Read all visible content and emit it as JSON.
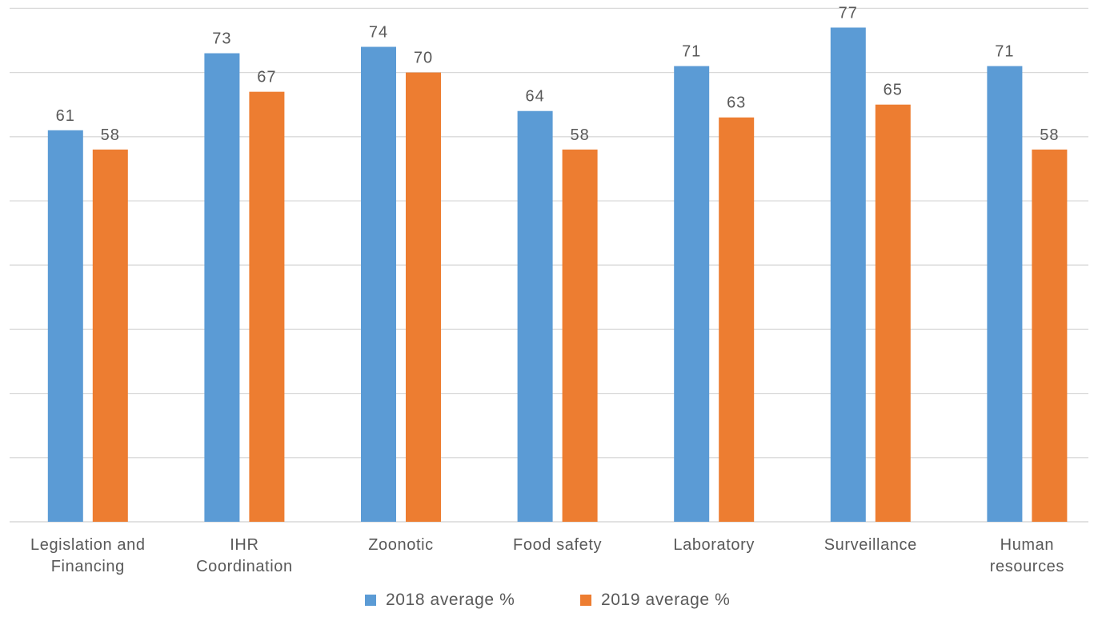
{
  "chart_data": {
    "type": "bar",
    "categories": [
      [
        "Legislation and",
        "Financing"
      ],
      [
        "IHR",
        "Coordination"
      ],
      [
        "Zoonotic"
      ],
      [
        "Food safety"
      ],
      [
        "Laboratory"
      ],
      [
        "Surveillance"
      ],
      [
        "Human",
        "resources"
      ]
    ],
    "series": [
      {
        "name": "2018 average %",
        "color": "#5b9bd5",
        "values": [
          61,
          73,
          74,
          64,
          71,
          77,
          71
        ]
      },
      {
        "name": "2019 average %",
        "color": "#ed7d31",
        "values": [
          58,
          67,
          70,
          58,
          63,
          65,
          58
        ]
      }
    ],
    "ylim": [
      0,
      80
    ],
    "ytick_step": 10,
    "grid": true,
    "y_tick_labels_shown": false,
    "data_labels": true,
    "legend_position": "bottom-center",
    "colors": {
      "grid": "#d9d9d9",
      "text": "#595959"
    }
  }
}
